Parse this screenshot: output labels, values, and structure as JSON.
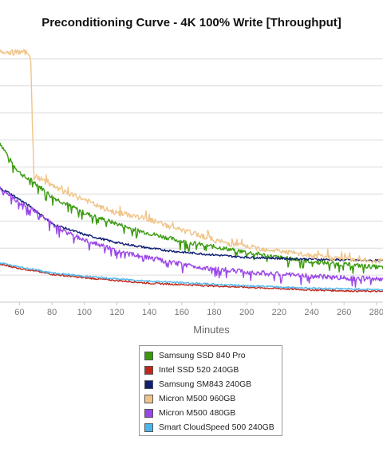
{
  "chart_data": {
    "type": "line",
    "title": "Preconditioning Curve - 4K 100% Write [Throughput]",
    "xlabel": "Minutes",
    "ylabel": "",
    "xlim": [
      48,
      284
    ],
    "ylim": [
      0,
      100
    ],
    "x_ticks": [
      60,
      80,
      100,
      120,
      140,
      160,
      180,
      200,
      220,
      240,
      260,
      280
    ],
    "gridlines": [
      10,
      20,
      30,
      40,
      50,
      60,
      70,
      80,
      90
    ],
    "grid": true,
    "legend_position": "bottom",
    "series": [
      {
        "name": "Samsung SSD 840 Pro",
        "color": "#3a9a0e",
        "points": [
          [
            48,
            59
          ],
          [
            52,
            55
          ],
          [
            56,
            51
          ],
          [
            60,
            48
          ],
          [
            64,
            46
          ],
          [
            68,
            45
          ],
          [
            72,
            43
          ],
          [
            80,
            39
          ],
          [
            90,
            36
          ],
          [
            100,
            33
          ],
          [
            110,
            31
          ],
          [
            120,
            29
          ],
          [
            130,
            27
          ],
          [
            140,
            25.5
          ],
          [
            150,
            24
          ],
          [
            160,
            22.5
          ],
          [
            170,
            21.5
          ],
          [
            180,
            20.5
          ],
          [
            190,
            19.5
          ],
          [
            200,
            18.5
          ],
          [
            210,
            17.5
          ],
          [
            220,
            16.5
          ],
          [
            230,
            15.8
          ],
          [
            240,
            15
          ],
          [
            250,
            14.5
          ],
          [
            260,
            14
          ],
          [
            270,
            13.5
          ],
          [
            280,
            13
          ],
          [
            284,
            12.8
          ]
        ]
      },
      {
        "name": "Intel SSD 520 240GB",
        "color": "#c0281c",
        "points": [
          [
            48,
            14
          ],
          [
            60,
            12.5
          ],
          [
            70,
            11.5
          ],
          [
            80,
            10.3
          ],
          [
            100,
            9
          ],
          [
            120,
            8
          ],
          [
            140,
            7
          ],
          [
            160,
            6.5
          ],
          [
            180,
            6
          ],
          [
            200,
            5.5
          ],
          [
            220,
            5
          ],
          [
            240,
            4.5
          ],
          [
            260,
            4.2
          ],
          [
            280,
            4
          ],
          [
            284,
            3.9
          ]
        ]
      },
      {
        "name": "Samsung SM843 240GB",
        "color": "#101e73",
        "points": [
          [
            48,
            42
          ],
          [
            52,
            41
          ],
          [
            60,
            38
          ],
          [
            70,
            34
          ],
          [
            80,
            29
          ],
          [
            90,
            27
          ],
          [
            100,
            25
          ],
          [
            110,
            23.5
          ],
          [
            120,
            22
          ],
          [
            130,
            21
          ],
          [
            140,
            20
          ],
          [
            150,
            19.2
          ],
          [
            160,
            18.5
          ],
          [
            170,
            18
          ],
          [
            180,
            17.5
          ],
          [
            190,
            17
          ],
          [
            200,
            16.6
          ],
          [
            220,
            16.2
          ],
          [
            240,
            15.9
          ],
          [
            260,
            15.6
          ],
          [
            280,
            15.4
          ],
          [
            284,
            15.3
          ]
        ]
      },
      {
        "name": "Micron M500 960GB",
        "color": "#f0c489",
        "points": [
          [
            48,
            92.5
          ],
          [
            52,
            92.8
          ],
          [
            56,
            92.3
          ],
          [
            60,
            92.6
          ],
          [
            64,
            92.4
          ],
          [
            66,
            92.2
          ],
          [
            67,
            88
          ],
          [
            68,
            65
          ],
          [
            69,
            46
          ],
          [
            70,
            46.5
          ],
          [
            75,
            45
          ],
          [
            80,
            43
          ],
          [
            90,
            40
          ],
          [
            100,
            38
          ],
          [
            110,
            35
          ],
          [
            120,
            33
          ],
          [
            130,
            32
          ],
          [
            140,
            30.5
          ],
          [
            150,
            28.5
          ],
          [
            160,
            26.5
          ],
          [
            170,
            25
          ],
          [
            180,
            23
          ],
          [
            190,
            21.5
          ],
          [
            200,
            20.5
          ],
          [
            220,
            19
          ],
          [
            240,
            17
          ],
          [
            260,
            16
          ],
          [
            270,
            15.5
          ],
          [
            280,
            15.2
          ],
          [
            284,
            15.5
          ]
        ]
      },
      {
        "name": "Micron M500 480GB",
        "color": "#9b47e8",
        "points": [
          [
            48,
            42
          ],
          [
            52,
            40.5
          ],
          [
            60,
            37
          ],
          [
            70,
            33.5
          ],
          [
            80,
            29
          ],
          [
            90,
            25.5
          ],
          [
            100,
            23
          ],
          [
            110,
            21
          ],
          [
            120,
            19
          ],
          [
            130,
            17.5
          ],
          [
            140,
            16.5
          ],
          [
            150,
            15
          ],
          [
            160,
            14
          ],
          [
            170,
            13
          ],
          [
            180,
            12.3
          ],
          [
            190,
            11.8
          ],
          [
            200,
            11.2
          ],
          [
            220,
            10.3
          ],
          [
            240,
            9.6
          ],
          [
            260,
            9
          ],
          [
            280,
            8.5
          ],
          [
            284,
            8.4
          ]
        ]
      },
      {
        "name": "Smart CloudSpeed 500 240GB",
        "color": "#4db6ec",
        "points": [
          [
            48,
            14.5
          ],
          [
            60,
            13
          ],
          [
            70,
            12
          ],
          [
            80,
            10.8
          ],
          [
            100,
            9.6
          ],
          [
            120,
            8.6
          ],
          [
            140,
            7.8
          ],
          [
            160,
            7.2
          ],
          [
            180,
            6.6
          ],
          [
            200,
            6.1
          ],
          [
            220,
            5.6
          ],
          [
            240,
            5.2
          ],
          [
            260,
            4.9
          ],
          [
            280,
            4.7
          ],
          [
            284,
            4.6
          ]
        ]
      }
    ]
  }
}
